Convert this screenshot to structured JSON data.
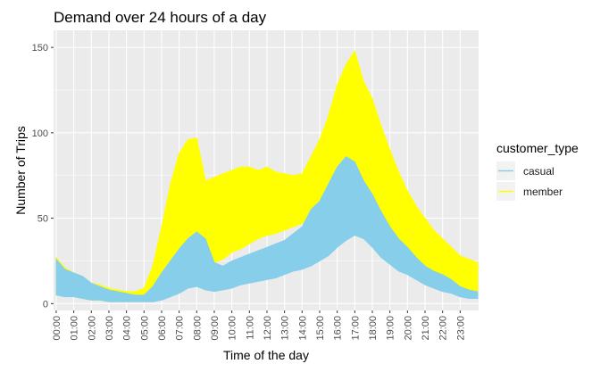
{
  "chart_data": {
    "type": "area",
    "title": "Demand over 24 hours of a day",
    "xlabel": "Time of the day",
    "ylabel": "Number of Trips",
    "x_tick_labels": [
      "00:00",
      "01:00",
      "02:00",
      "03:00",
      "04:00",
      "05:00",
      "06:00",
      "07:00",
      "08:00",
      "09:00",
      "10:00",
      "11:00",
      "12:00",
      "13:00",
      "14:00",
      "15:00",
      "16:00",
      "17:00",
      "18:00",
      "19:00",
      "20:00",
      "21:00",
      "22:00",
      "23:00"
    ],
    "y_ticks": [
      0,
      50,
      100,
      150
    ],
    "ylim": [
      -4,
      160
    ],
    "grid": true,
    "legend_title": "customer_type",
    "legend_position": "right",
    "hours": [
      0,
      0.5,
      1,
      1.5,
      2,
      2.5,
      3,
      3.5,
      4,
      4.5,
      5,
      5.5,
      6,
      6.5,
      7,
      7.5,
      8,
      8.5,
      9,
      9.5,
      10,
      10.5,
      11,
      11.5,
      12,
      12.5,
      13,
      13.5,
      14,
      14.5,
      15,
      15.5,
      16,
      16.5,
      17,
      17.5,
      18,
      18.5,
      19,
      19.5,
      20,
      20.5,
      21,
      21.5,
      22,
      22.5,
      23,
      23.5,
      24
    ],
    "series": [
      {
        "name": "casual",
        "color": "#87CEEB",
        "low": [
          5,
          4,
          4,
          3,
          2,
          2,
          1,
          1,
          1,
          1,
          1,
          1,
          2,
          4,
          6,
          9,
          10,
          8,
          7,
          8,
          9,
          11,
          12,
          13,
          14,
          15,
          17,
          19,
          20,
          22,
          25,
          28,
          33,
          37,
          40,
          38,
          33,
          27,
          23,
          19,
          17,
          14,
          11,
          9,
          7,
          6,
          4,
          3,
          3
        ],
        "high": [
          26,
          20,
          18,
          16,
          12,
          10,
          8,
          7,
          6,
          5,
          5,
          10,
          18,
          25,
          32,
          38,
          42,
          38,
          24,
          22,
          25,
          27,
          29,
          31,
          33,
          35,
          37,
          41,
          45,
          55,
          60,
          70,
          80,
          86,
          83,
          72,
          64,
          54,
          45,
          38,
          33,
          27,
          22,
          19,
          17,
          14,
          10,
          8,
          7
        ]
      },
      {
        "name": "member",
        "color": "#FFFF00",
        "low": [
          5,
          5,
          4,
          3,
          2,
          2,
          1,
          1,
          1,
          1,
          1,
          2,
          5,
          10,
          20,
          30,
          32,
          27,
          24,
          26,
          30,
          32,
          35,
          38,
          40,
          41,
          43,
          45,
          47,
          50,
          53,
          58,
          64,
          70,
          72,
          68,
          60,
          52,
          45,
          37,
          32,
          26,
          21,
          17,
          14,
          11,
          7,
          5,
          4
        ],
        "high": [
          27,
          21,
          18,
          16,
          12,
          11,
          9,
          8,
          7,
          7,
          9,
          22,
          45,
          70,
          88,
          96,
          97,
          72,
          74,
          76,
          78,
          80,
          80,
          78,
          80,
          77,
          76,
          75,
          76,
          86,
          96,
          110,
          128,
          140,
          148,
          130,
          120,
          104,
          90,
          77,
          66,
          57,
          50,
          43,
          38,
          33,
          28,
          26,
          24
        ]
      }
    ]
  }
}
